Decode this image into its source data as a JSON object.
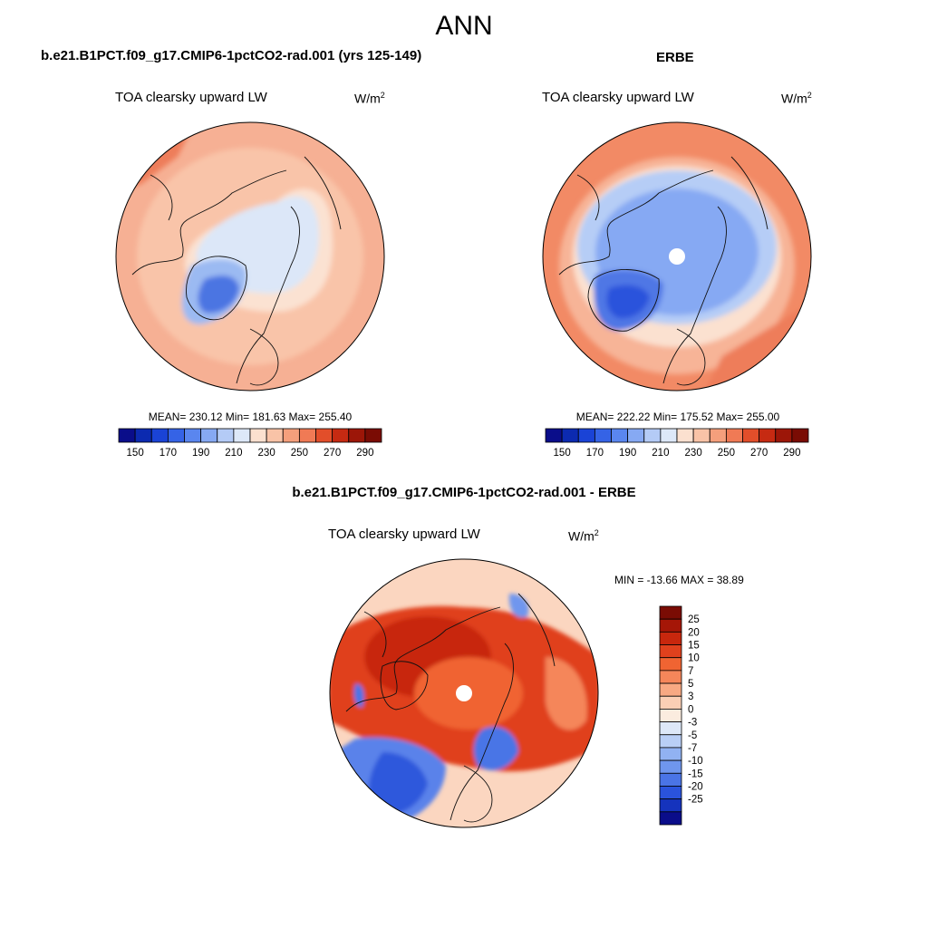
{
  "main_title": "ANN",
  "panels": [
    {
      "id": "model",
      "title": "b.e21.B1PCT.f09_g17.CMIP6-1pctCO2-rad.001 (yrs 125-149)",
      "left_label": "TOA clearsky upward LW",
      "units_base": "W/m",
      "units_exp": "2",
      "stats": "MEAN= 230.12  Min= 181.63  Max= 255.40"
    },
    {
      "id": "obs",
      "title": "ERBE",
      "left_label": "TOA clearsky upward LW",
      "units_base": "W/m",
      "units_exp": "2",
      "stats": "MEAN= 222.22  Min= 175.52  Max= 255.00"
    },
    {
      "id": "diff",
      "title": "b.e21.B1PCT.f09_g17.CMIP6-1pctCO2-rad.001 - ERBE",
      "left_label": "TOA clearsky upward LW",
      "units_base": "W/m",
      "units_exp": "2",
      "stats": "MIN = -13.66 MAX =  38.89"
    }
  ],
  "chart_data": [
    {
      "type": "heatmap",
      "projection": "north-polar-stereographic",
      "title": "b.e21.B1PCT.f09_g17.CMIP6-1pctCO2-rad.001 (yrs 125-149)",
      "variable": "TOA clearsky upward LW",
      "units": "W/m2",
      "mean": 230.12,
      "min": 181.63,
      "max": 255.4,
      "colorbar": {
        "orientation": "horizontal",
        "levels": [
          150,
          160,
          170,
          180,
          190,
          200,
          210,
          220,
          230,
          240,
          250,
          260,
          270,
          280,
          290
        ],
        "tick_labels": [
          "150",
          "170",
          "190",
          "210",
          "230",
          "250",
          "270",
          "290"
        ],
        "colors": [
          "#0a0d8a",
          "#0c2ab0",
          "#1a43d6",
          "#3563e6",
          "#5a86ef",
          "#86a9f3",
          "#b4cbf6",
          "#dde8f8",
          "#fbe0cf",
          "#f9c3a7",
          "#f59f7c",
          "#f07a55",
          "#e24e2a",
          "#c62a12",
          "#9c1608",
          "#7a0c04"
        ]
      },
      "regions": [
        {
          "name": "Greenland ice sheet",
          "level": "~190"
        },
        {
          "name": "central Arctic",
          "level": "~210-220"
        },
        {
          "name": "subpolar oceans",
          "level": "~230-250"
        },
        {
          "name": "North Africa / outer ring",
          "level": "~250-260"
        }
      ]
    },
    {
      "type": "heatmap",
      "projection": "north-polar-stereographic",
      "title": "ERBE",
      "variable": "TOA clearsky upward LW",
      "units": "W/m2",
      "mean": 222.22,
      "min": 175.52,
      "max": 255.0,
      "colorbar": {
        "orientation": "horizontal",
        "levels": [
          150,
          160,
          170,
          180,
          190,
          200,
          210,
          220,
          230,
          240,
          250,
          260,
          270,
          280,
          290
        ],
        "tick_labels": [
          "150",
          "170",
          "190",
          "210",
          "230",
          "250",
          "270",
          "290"
        ],
        "colors": [
          "#0a0d8a",
          "#0c2ab0",
          "#1a43d6",
          "#3563e6",
          "#5a86ef",
          "#86a9f3",
          "#b4cbf6",
          "#dde8f8",
          "#fbe0cf",
          "#f9c3a7",
          "#f59f7c",
          "#f07a55",
          "#e24e2a",
          "#c62a12",
          "#9c1608",
          "#7a0c04"
        ]
      },
      "regions": [
        {
          "name": "Greenland ice sheet",
          "level": "~180"
        },
        {
          "name": "central Arctic",
          "level": "~200-210"
        },
        {
          "name": "pole",
          "level": "missing"
        },
        {
          "name": "subpolar oceans",
          "level": "~230-250"
        }
      ]
    },
    {
      "type": "heatmap",
      "projection": "north-polar-stereographic",
      "title": "b.e21.B1PCT.f09_g17.CMIP6-1pctCO2-rad.001 - ERBE",
      "variable": "TOA clearsky upward LW",
      "units": "W/m2",
      "min": -13.66,
      "max": 38.89,
      "colorbar": {
        "orientation": "vertical",
        "levels": [
          25,
          20,
          15,
          10,
          7,
          5,
          3,
          0,
          -3,
          -5,
          -7,
          -10,
          -15,
          -20,
          -25
        ],
        "tick_labels": [
          "25",
          "20",
          "15",
          "10",
          "7",
          "5",
          "3",
          "0",
          "-3",
          "-5",
          "-7",
          "-10",
          "-15",
          "-20",
          "-25"
        ],
        "colors": [
          "#7a0c04",
          "#a51607",
          "#c8270d",
          "#e0411d",
          "#f06432",
          "#f5865a",
          "#f8a983",
          "#fbcfb5",
          "#fbecdf",
          "#dde8f8",
          "#b9cff6",
          "#91b2f2",
          "#6f96ee",
          "#4a74e6",
          "#2a53dc",
          "#1533bd",
          "#0a0d8a"
        ]
      },
      "regions": [
        {
          "name": "central Arctic / Eurasia",
          "level": "+15 to +25"
        },
        {
          "name": "North Atlantic / Greenland sea",
          "level": "-5 to -10"
        },
        {
          "name": "North Pacific",
          "level": "-3 to -7"
        },
        {
          "name": "pole",
          "level": "missing"
        }
      ]
    }
  ]
}
